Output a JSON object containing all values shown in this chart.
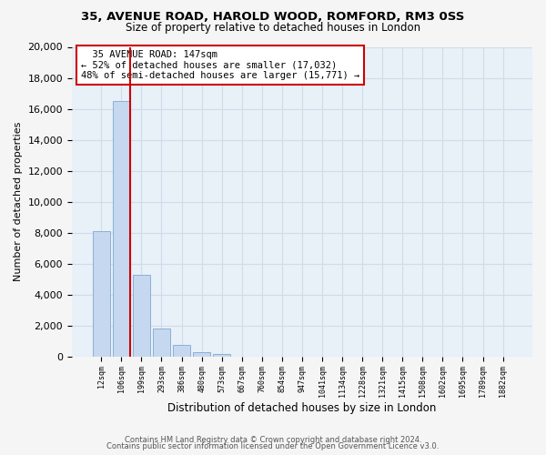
{
  "title": "35, AVENUE ROAD, HAROLD WOOD, ROMFORD, RM3 0SS",
  "subtitle": "Size of property relative to detached houses in London",
  "xlabel": "Distribution of detached houses by size in London",
  "ylabel": "Number of detached properties",
  "categories": [
    "12sqm",
    "106sqm",
    "199sqm",
    "293sqm",
    "386sqm",
    "480sqm",
    "573sqm",
    "667sqm",
    "760sqm",
    "854sqm",
    "947sqm",
    "1041sqm",
    "1134sqm",
    "1228sqm",
    "1321sqm",
    "1415sqm",
    "1508sqm",
    "1602sqm",
    "1695sqm",
    "1789sqm",
    "1882sqm"
  ],
  "values": [
    8100,
    16500,
    5300,
    1800,
    750,
    280,
    150,
    0,
    0,
    0,
    0,
    0,
    0,
    0,
    0,
    0,
    0,
    0,
    0,
    0,
    0
  ],
  "bar_color": "#c5d8f0",
  "bar_edge_color": "#8ab0d8",
  "vline_color": "#cc0000",
  "annotation_title": "35 AVENUE ROAD: 147sqm",
  "annotation_line1": "← 52% of detached houses are smaller (17,032)",
  "annotation_line2": "48% of semi-detached houses are larger (15,771) →",
  "annotation_box_color": "#ffffff",
  "annotation_box_edge": "#cc0000",
  "ylim": [
    0,
    20000
  ],
  "yticks": [
    0,
    2000,
    4000,
    6000,
    8000,
    10000,
    12000,
    14000,
    16000,
    18000,
    20000
  ],
  "footer1": "Contains HM Land Registry data © Crown copyright and database right 2024.",
  "footer2": "Contains public sector information licensed under the Open Government Licence v3.0.",
  "grid_color": "#d0dce8",
  "bg_color": "#e8f0f8",
  "fig_bg_color": "#f5f5f5"
}
